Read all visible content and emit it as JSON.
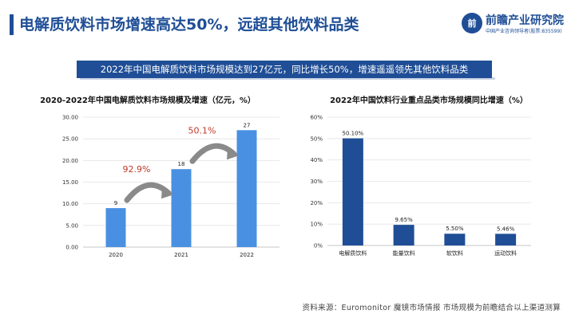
{
  "header": {
    "title": "电解质饮料市场增速高达50%，远超其他饮料品类",
    "logo_name": "前瞻产业研究院",
    "logo_sub": "中国产业咨询领导者(股票:835599)"
  },
  "banner": {
    "text": "2022年中国电解质饮料市场规模达到27亿元，同比增长50%，增速遥遥领先其他饮料品类"
  },
  "source": "资料来源：Euromonitor 魔镜市场情报 市场规模为前瞻结合以上渠道测算",
  "colors": {
    "primary": "#1f4e96",
    "bar_light": "#4a90e2",
    "growth_red": "#c0392b",
    "arrow_gray": "#8a8a8a"
  },
  "chart_data": [
    {
      "type": "bar",
      "title": "2020-2022年中国电解质饮料市场规模及增速（亿元，%）",
      "categories": [
        "2020",
        "2021",
        "2022"
      ],
      "values": [
        9,
        18,
        27
      ],
      "value_labels": [
        "9",
        "18",
        "27"
      ],
      "yticks": [
        "0.00",
        "5.00",
        "10.00",
        "15.00",
        "20.00",
        "25.00",
        "30.00"
      ],
      "ylim": [
        0,
        30
      ],
      "growth_annotations": [
        {
          "from": "2020",
          "to": "2021",
          "label": "92.9%"
        },
        {
          "from": "2021",
          "to": "2022",
          "label": "50.1%"
        }
      ]
    },
    {
      "type": "bar",
      "title": "2022年中国饮料行业重点品类市场规模同比增速（%）",
      "categories": [
        "电解质饮料",
        "能量饮料",
        "软饮料",
        "运动饮料"
      ],
      "values": [
        50.1,
        9.65,
        5.5,
        5.46
      ],
      "value_labels": [
        "50.10%",
        "9.65%",
        "5.50%",
        "5.46%"
      ],
      "yticks": [
        "0%",
        "10%",
        "20%",
        "30%",
        "40%",
        "50%",
        "60%"
      ],
      "ylim": [
        0,
        60
      ]
    }
  ]
}
